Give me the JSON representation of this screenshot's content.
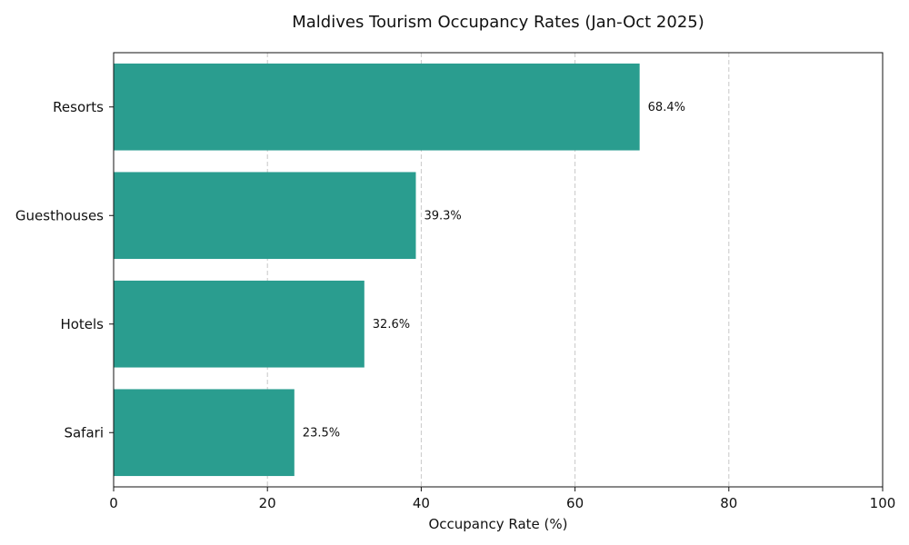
{
  "chart_data": {
    "type": "bar",
    "orientation": "horizontal",
    "title": "Maldives Tourism Occupancy Rates (Jan-Oct 2025)",
    "xlabel": "Occupancy Rate (%)",
    "ylabel": "",
    "categories": [
      "Resorts",
      "Guesthouses",
      "Hotels",
      "Safari"
    ],
    "values": [
      68.4,
      39.3,
      32.6,
      23.5
    ],
    "data_labels": [
      "68.4%",
      "39.3%",
      "32.6%",
      "23.5%"
    ],
    "xlim": [
      0,
      100
    ],
    "xticks": [
      0,
      20,
      40,
      60,
      80,
      100
    ],
    "xtick_labels": [
      "0",
      "20",
      "40",
      "60",
      "80",
      "100"
    ],
    "grid": "x-dashed",
    "bar_color": "#2a9d8f"
  }
}
